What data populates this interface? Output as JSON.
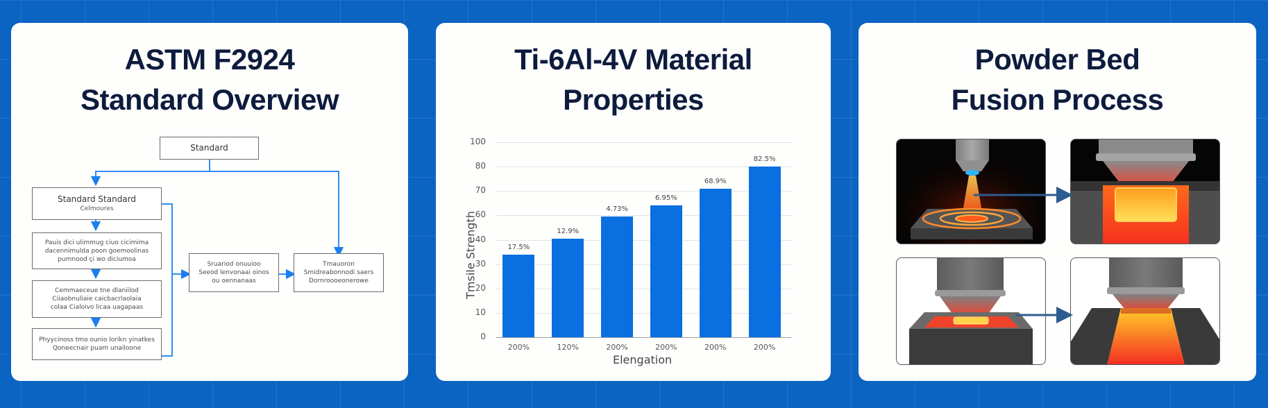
{
  "background": {
    "color": "#0b63c2",
    "grid": true
  },
  "panels": [
    {
      "id": "standard-overview",
      "title_lines": [
        "ASTM F2924",
        "Standard Overview"
      ],
      "flowchart": {
        "root": {
          "label": "Standard"
        },
        "left_column": [
          {
            "lines": [
              "Standard Standard",
              "Celmoures"
            ]
          },
          {
            "lines": [
              "Pauis dici ulimmug ciuo cicimima",
              "dacennimulda poon goemoolinas",
              "pumnood çi wo diciumoa"
            ]
          },
          {
            "lines": [
              "Cemmaeceue tne dlaniilod",
              "Ciiaobnuliaie caicbacrlaolaia",
              "colaa Cialoivo licaa uagapaas"
            ]
          },
          {
            "lines": [
              "Phyycinoss tmo ounio lorikn yinatkes",
              "Qoneecnair puam unailoone"
            ]
          }
        ],
        "middle_box": {
          "lines": [
            "Sruariod onuuioo",
            "Seeod lenvonaai oinos",
            "ou oennanaas"
          ]
        },
        "right_box": {
          "lines": [
            "Tmauoron",
            "Smidreabonnodi saers",
            "Dornroooeonerowe"
          ]
        },
        "connector_color": "#1a7ff0"
      }
    },
    {
      "id": "material-properties",
      "title_lines": [
        "Ti-6Al-4V Material",
        "Properties"
      ]
    },
    {
      "id": "powder-bed-fusion",
      "title_lines": [
        "Powder Bed",
        "Fusion Process"
      ],
      "illustrations": [
        {
          "name": "laser-beam-scanning",
          "style": "dark"
        },
        {
          "name": "melt-pool-formation",
          "style": "dark"
        },
        {
          "name": "layer-deposition",
          "style": "light"
        },
        {
          "name": "solidified-build",
          "style": "light"
        }
      ],
      "arrow_color": "#2d5c8e"
    }
  ],
  "chart_data": {
    "type": "bar",
    "title": "Ti-6Al-4V Material Properties",
    "xlabel": "Elengation",
    "ylabel": "Tmsile Strength",
    "categories": [
      "200%",
      "120%",
      "200%",
      "200%",
      "200%",
      "200%"
    ],
    "values": [
      34,
      41,
      59,
      64,
      71,
      80
    ],
    "bar_labels": [
      "17.5%",
      "12.9%",
      "4.73%",
      "6.95%",
      "68.9%",
      "82.5%"
    ],
    "y_ticks": [
      "100",
      "80",
      "70",
      "60",
      "40",
      "30",
      "20",
      "10",
      "0"
    ],
    "ylim": [
      0,
      100
    ],
    "grid": true,
    "legend": "none",
    "bar_color": "#0a6fe0"
  }
}
